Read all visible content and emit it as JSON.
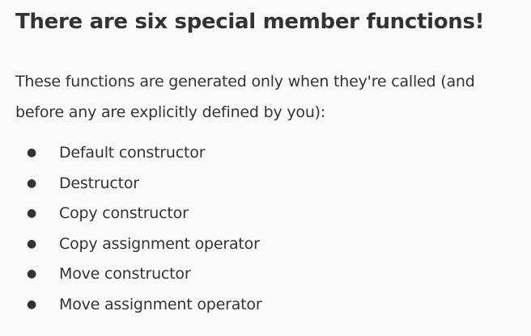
{
  "heading": "There are six special member functions!",
  "intro": "These functions are generated only when they're called (and before any are explicitly defined by you):",
  "bullet_glyph": "●",
  "items": [
    "Default constructor",
    "Destructor",
    "Copy constructor",
    "Copy assignment operator",
    "Move constructor",
    "Move assignment operator"
  ]
}
